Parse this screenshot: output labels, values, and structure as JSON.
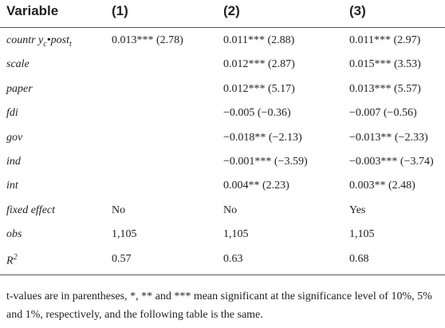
{
  "header": [
    "Variable",
    "(1)",
    "(2)",
    "(3)"
  ],
  "rows": [
    {
      "variable": [
        {
          "t": "countr y"
        },
        {
          "t": "c",
          "sub": true
        },
        {
          "t": "•post"
        },
        {
          "t": "t",
          "sub": true
        }
      ],
      "cells": [
        "0.013*** (2.78)",
        "0.011*** (2.88)",
        "0.011*** (2.97)"
      ]
    },
    {
      "variable": [
        {
          "t": "scale"
        }
      ],
      "cells": [
        null,
        "0.012*** (2.87)",
        "0.015*** (3.53)"
      ]
    },
    {
      "variable": [
        {
          "t": "paper"
        }
      ],
      "cells": [
        null,
        "0.012*** (5.17)",
        "0.013*** (5.57)"
      ]
    },
    {
      "variable": [
        {
          "t": "fdi"
        }
      ],
      "cells": [
        null,
        "−0.005 (−0.36)",
        "−0.007 (−0.56)"
      ]
    },
    {
      "variable": [
        {
          "t": "gov"
        }
      ],
      "cells": [
        null,
        "−0.018** (−2.13)",
        "−0.013** (−2.33)"
      ]
    },
    {
      "variable": [
        {
          "t": "ind"
        }
      ],
      "cells": [
        null,
        "−0.001*** (−3.59)",
        "−0.003*** (−3.74)"
      ]
    },
    {
      "variable": [
        {
          "t": "int"
        }
      ],
      "cells": [
        null,
        "0.004** (2.23)",
        "0.003** (2.48)"
      ]
    },
    {
      "variable": [
        {
          "t": "fixed effect"
        }
      ],
      "cells": [
        "No",
        "No",
        "Yes"
      ]
    },
    {
      "variable": [
        {
          "t": "obs"
        }
      ],
      "cells": [
        "1,105",
        "1,105",
        "1,105"
      ]
    },
    {
      "variable": [
        {
          "t": "R"
        },
        {
          "t": "2",
          "sup": true
        }
      ],
      "cells": [
        "0.57",
        "0.63",
        "0.68"
      ]
    }
  ],
  "footnote": "t-values are in parentheses, *, ** and *** mean significant at the significance level of 10%, 5% and 1%, respectively, and the following table is the same."
}
